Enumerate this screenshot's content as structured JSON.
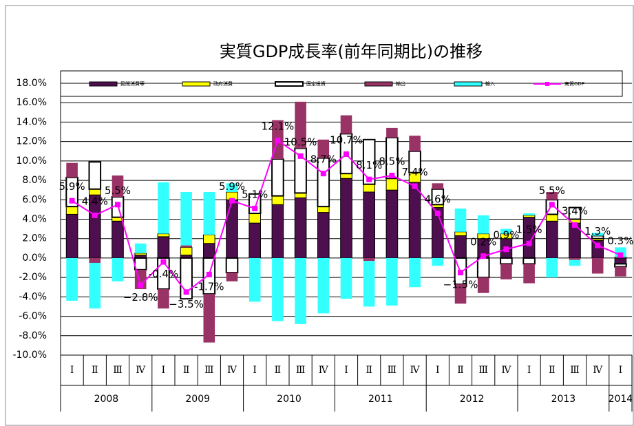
{
  "chart_data": {
    "type": "bar",
    "title": "実質GDP成長率(前年同期比)の推移",
    "categories": [
      "Ⅰ",
      "Ⅱ",
      "Ⅲ",
      "Ⅳ",
      "Ⅰ",
      "Ⅱ",
      "Ⅲ",
      "Ⅳ",
      "Ⅰ",
      "Ⅱ",
      "Ⅲ",
      "Ⅳ",
      "Ⅰ",
      "Ⅱ",
      "Ⅲ",
      "Ⅳ",
      "Ⅰ",
      "Ⅱ",
      "Ⅲ",
      "Ⅳ",
      "Ⅰ",
      "Ⅱ",
      "Ⅲ",
      "Ⅳ",
      "Ⅰ"
    ],
    "groups": [
      "2008",
      "2009",
      "2010",
      "2011",
      "2012",
      "2013",
      "2014"
    ],
    "series": [
      {
        "name": "民間消費等",
        "type": "bar",
        "color": "#4d0f4d",
        "values": [
          4.5,
          6.5,
          3.8,
          0.3,
          2.2,
          0.3,
          1.5,
          6.0,
          3.6,
          5.5,
          6.2,
          4.7,
          8.2,
          6.8,
          7.0,
          7.8,
          5.2,
          2.3,
          2.0,
          2.0,
          4.2,
          3.8,
          3.6,
          1.8,
          -0.6
        ]
      },
      {
        "name": "政府消費",
        "type": "bar",
        "color": "#ffff00",
        "values": [
          0.8,
          0.6,
          0.4,
          0.2,
          0.3,
          0.8,
          0.9,
          0.8,
          1.0,
          0.9,
          0.5,
          0.6,
          0.5,
          0.8,
          1.2,
          1.0,
          0.3,
          0.4,
          0.5,
          0.5,
          0.2,
          0.7,
          0.4,
          0.2,
          0.1
        ]
      },
      {
        "name": "固定投資",
        "type": "bar",
        "color": "#ffffff",
        "values": [
          3.0,
          2.8,
          2.1,
          -1.2,
          -3.2,
          -4.2,
          -3.7,
          -1.5,
          2.0,
          3.8,
          4.6,
          5.0,
          4.1,
          4.6,
          4.2,
          2.2,
          1.6,
          -2.7,
          -2.0,
          -0.6,
          -0.6,
          1.5,
          1.2,
          0.3,
          -0.3
        ]
      },
      {
        "name": "輸出",
        "type": "bar",
        "color": "#993366",
        "values": [
          1.5,
          -0.5,
          2.2,
          -2.0,
          -2.0,
          0.2,
          -5.0,
          -0.9,
          0.0,
          4.0,
          4.8,
          1.9,
          1.9,
          -0.3,
          1.0,
          1.6,
          0.6,
          -2.0,
          -1.6,
          -1.6,
          -2.0,
          0.8,
          -0.2,
          -1.6,
          -1.0
        ]
      },
      {
        "name": "輸入",
        "type": "bar",
        "color": "#33ffff",
        "values": [
          -4.4,
          -4.7,
          -2.4,
          1.0,
          5.3,
          5.5,
          4.4,
          0.9,
          -4.5,
          -6.5,
          -6.8,
          -5.7,
          -4.2,
          -4.7,
          -4.9,
          -3.0,
          -0.8,
          2.4,
          1.9,
          0.5,
          0.2,
          -2.0,
          -0.6,
          0.3,
          1.0
        ]
      },
      {
        "name": "実質GDP",
        "type": "line",
        "color": "#ff00ff",
        "values": [
          5.9,
          4.4,
          5.5,
          -2.8,
          -0.4,
          -3.5,
          -1.7,
          5.9,
          5.1,
          12.1,
          10.5,
          8.7,
          10.7,
          8.1,
          8.5,
          7.4,
          4.6,
          -1.5,
          0.2,
          0.9,
          1.5,
          5.5,
          3.4,
          1.3,
          0.3
        ],
        "value_labels": [
          "5.9%",
          "4.4%",
          "5.5%",
          "−2.8%",
          "-0.4%",
          "−3.5%",
          "-1.7%",
          "5.9%",
          "5.1%",
          "12.1%",
          "10.5%",
          "8.7%",
          "10.7%",
          "8.1%",
          "8.5%",
          "7.4%",
          "4.6%",
          "−1.5%",
          "0.2%",
          "0.9%",
          "1.5%",
          "5.5%",
          "3.4%",
          "1.3%",
          "0.3%"
        ]
      }
    ],
    "ylim": [
      -10,
      18
    ],
    "yticks": [
      {
        "value": -10,
        "label": "-10.0%"
      },
      {
        "value": -8,
        "label": "-8.0%"
      },
      {
        "value": -6,
        "label": "-6.0%"
      },
      {
        "value": -4,
        "label": "-4.0%"
      },
      {
        "value": -2,
        "label": "-2.0%"
      },
      {
        "value": 0,
        "label": "0.0%"
      },
      {
        "value": 2,
        "label": "2.0%"
      },
      {
        "value": 4,
        "label": "4.0%"
      },
      {
        "value": 6,
        "label": "6.0%"
      },
      {
        "value": 8,
        "label": "8.0%"
      },
      {
        "value": 10,
        "label": "10.0%"
      },
      {
        "value": 12,
        "label": "12.0%"
      },
      {
        "value": 14,
        "label": "14.0%"
      },
      {
        "value": 16,
        "label": "16.0%"
      },
      {
        "value": 18,
        "label": "18.0%"
      }
    ],
    "grid": true
  }
}
